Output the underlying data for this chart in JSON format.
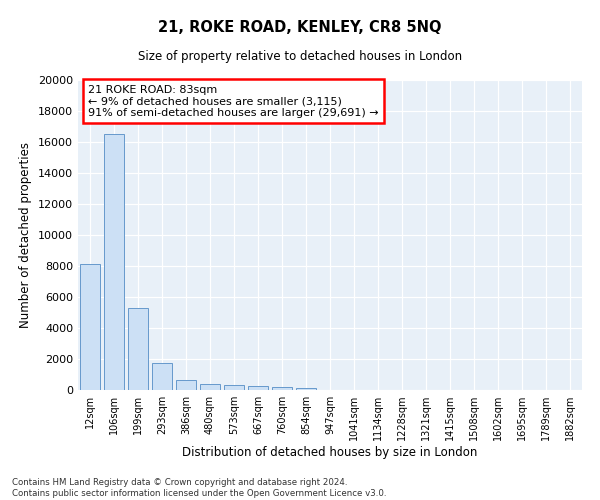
{
  "title": "21, ROKE ROAD, KENLEY, CR8 5NQ",
  "subtitle": "Size of property relative to detached houses in London",
  "xlabel": "Distribution of detached houses by size in London",
  "ylabel": "Number of detached properties",
  "bar_color": "#cce0f5",
  "bar_edge_color": "#6699cc",
  "background_color": "#e8f0f8",
  "annotation_box_text": "21 ROKE ROAD: 83sqm\n← 9% of detached houses are smaller (3,115)\n91% of semi-detached houses are larger (29,691) →",
  "categories": [
    "12sqm",
    "106sqm",
    "199sqm",
    "293sqm",
    "386sqm",
    "480sqm",
    "573sqm",
    "667sqm",
    "760sqm",
    "854sqm",
    "947sqm",
    "1041sqm",
    "1134sqm",
    "1228sqm",
    "1321sqm",
    "1415sqm",
    "1508sqm",
    "1602sqm",
    "1695sqm",
    "1789sqm",
    "1882sqm"
  ],
  "values": [
    8100,
    16500,
    5300,
    1750,
    650,
    380,
    300,
    230,
    180,
    120,
    0,
    0,
    0,
    0,
    0,
    0,
    0,
    0,
    0,
    0,
    0
  ],
  "ylim": [
    0,
    20000
  ],
  "yticks": [
    0,
    2000,
    4000,
    6000,
    8000,
    10000,
    12000,
    14000,
    16000,
    18000,
    20000
  ],
  "footnote": "Contains HM Land Registry data © Crown copyright and database right 2024.\nContains public sector information licensed under the Open Government Licence v3.0."
}
